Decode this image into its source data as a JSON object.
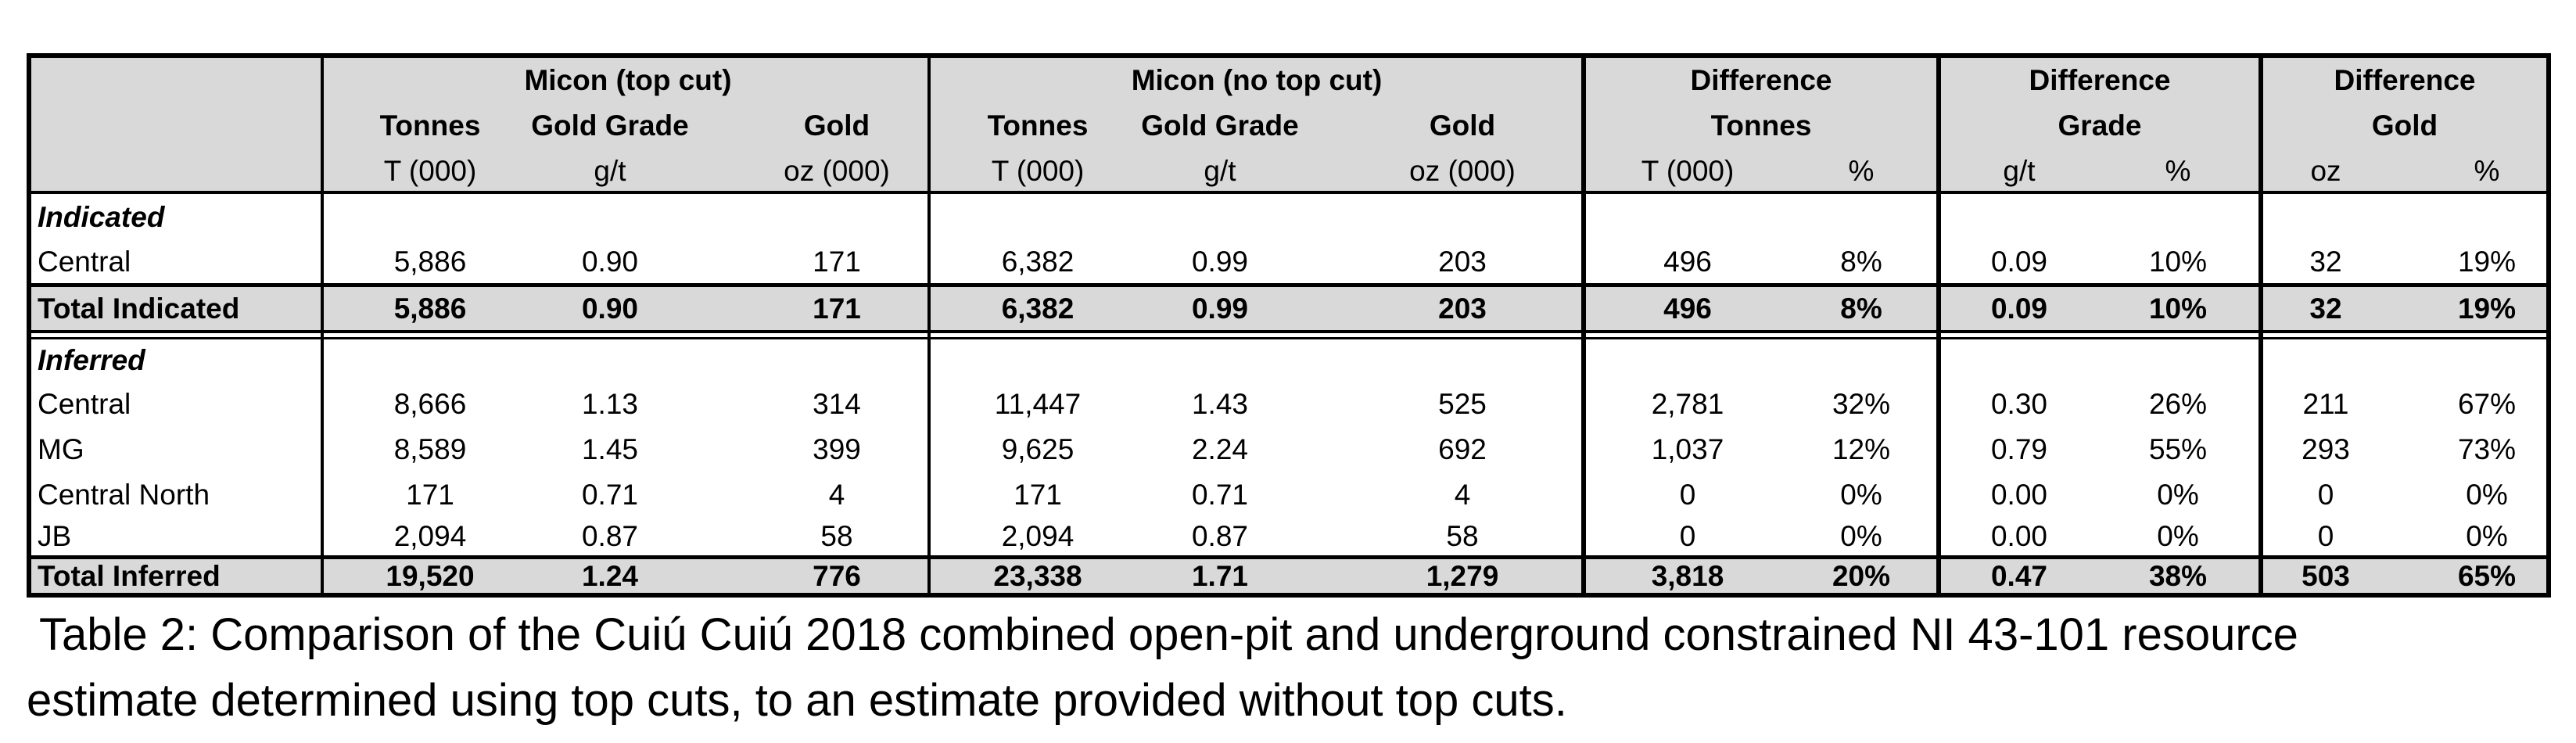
{
  "groups": [
    {
      "title": "Micon (top cut)",
      "subs": [
        "Tonnes",
        "Gold Grade",
        "Gold"
      ],
      "units": [
        "T (000)",
        "g/t",
        "oz (000)"
      ]
    },
    {
      "title": "Micon (no top cut)",
      "subs": [
        "Tonnes",
        "Gold Grade",
        "Gold"
      ],
      "units": [
        "T (000)",
        "g/t",
        "oz (000)"
      ]
    },
    {
      "title": "Difference",
      "subtitle": "Tonnes",
      "units": [
        "T (000)",
        "%"
      ]
    },
    {
      "title": "Difference",
      "subtitle": "Grade",
      "units": [
        "g/t",
        "%"
      ]
    },
    {
      "title": "Difference",
      "subtitle": "Gold",
      "units": [
        "oz",
        "%"
      ]
    }
  ],
  "sections": {
    "indicated": "Indicated",
    "inferred": "Inferred"
  },
  "rows": {
    "ind_central": [
      "Central",
      "5,886",
      "0.90",
      "171",
      "6,382",
      "0.99",
      "203",
      "496",
      "8%",
      "0.09",
      "10%",
      "32",
      "19%"
    ],
    "total_indicated": [
      "Total Indicated",
      "5,886",
      "0.90",
      "171",
      "6,382",
      "0.99",
      "203",
      "496",
      "8%",
      "0.09",
      "10%",
      "32",
      "19%"
    ],
    "inf_central": [
      "Central",
      "8,666",
      "1.13",
      "314",
      "11,447",
      "1.43",
      "525",
      "2,781",
      "32%",
      "0.30",
      "26%",
      "211",
      "67%"
    ],
    "inf_mg": [
      "MG",
      "8,589",
      "1.45",
      "399",
      "9,625",
      "2.24",
      "692",
      "1,037",
      "12%",
      "0.79",
      "55%",
      "293",
      "73%"
    ],
    "inf_central_north": [
      "Central North",
      "171",
      "0.71",
      "4",
      "171",
      "0.71",
      "4",
      "0",
      "0%",
      "0.00",
      "0%",
      "0",
      "0%"
    ],
    "inf_jb": [
      "JB",
      "2,094",
      "0.87",
      "58",
      "2,094",
      "0.87",
      "58",
      "0",
      "0%",
      "0.00",
      "0%",
      "0",
      "0%"
    ],
    "total_inferred": [
      "Total Inferred",
      "19,520",
      "1.24",
      "776",
      "23,338",
      "1.71",
      "1,279",
      "3,818",
      "20%",
      "0.47",
      "38%",
      "503",
      "65%"
    ]
  },
  "caption": {
    "line1": "Table 2: Comparison of the Cuiú Cuiú 2018 combined open-pit and underground constrained NI 43-101 resource",
    "line2": "estimate determined using top cuts, to an estimate provided without top cuts."
  }
}
